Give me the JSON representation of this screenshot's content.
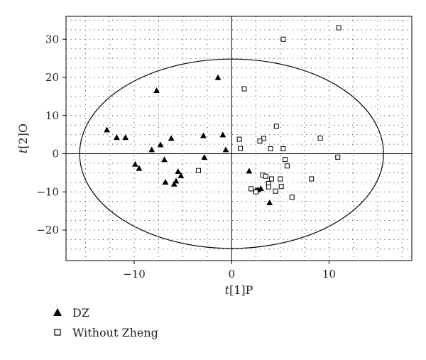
{
  "chart_data": {
    "type": "scatter",
    "xlabel_var": "t",
    "xlabel_rest": "[1]P",
    "ylabel_var": "t",
    "ylabel_rest": "[2]O",
    "xlim": [
      -17,
      18.5
    ],
    "ylim": [
      -28,
      36
    ],
    "xticks": [
      -10,
      0,
      10
    ],
    "yticks": [
      -20,
      -10,
      0,
      10,
      20,
      30
    ],
    "xtick_labels": [
      "−10",
      "0",
      "10"
    ],
    "ytick_labels": [
      "−20",
      "−10",
      "0",
      "10",
      "20",
      "30"
    ],
    "grid": true,
    "ellipse": {
      "cx": 0,
      "cy": 0,
      "rx": 15.6,
      "ry": 24.8
    },
    "legend_position": "bottom-left",
    "series": [
      {
        "name": "DZ",
        "marker": "triangle",
        "points": [
          [
            -12.8,
            6.2
          ],
          [
            -11.8,
            4.2
          ],
          [
            -10.9,
            4.2
          ],
          [
            -9.9,
            -2.8
          ],
          [
            -9.5,
            -3.9
          ],
          [
            -8.2,
            1.0
          ],
          [
            -7.7,
            16.5
          ],
          [
            -7.3,
            2.3
          ],
          [
            -6.9,
            -1.6
          ],
          [
            -6.8,
            -7.5
          ],
          [
            -6.2,
            4.0
          ],
          [
            -5.9,
            -8.0
          ],
          [
            -5.7,
            -7.2
          ],
          [
            -5.5,
            -4.7
          ],
          [
            -5.2,
            -5.8
          ],
          [
            -2.9,
            4.7
          ],
          [
            -2.8,
            -1.0
          ],
          [
            -1.4,
            19.9
          ],
          [
            -0.9,
            4.9
          ],
          [
            -0.6,
            1.0
          ],
          [
            1.8,
            -4.6
          ],
          [
            2.5,
            -9.6
          ],
          [
            2.7,
            -9.5
          ],
          [
            3.0,
            -9.2
          ],
          [
            3.9,
            -12.9
          ]
        ]
      },
      {
        "name": "Without Zheng",
        "marker": "square",
        "points": [
          [
            11.0,
            33.0
          ],
          [
            5.3,
            30.0
          ],
          [
            1.3,
            17.0
          ],
          [
            4.6,
            7.2
          ],
          [
            9.1,
            4.1
          ],
          [
            0.8,
            3.8
          ],
          [
            3.3,
            4.0
          ],
          [
            2.9,
            3.3
          ],
          [
            0.9,
            1.4
          ],
          [
            4.0,
            1.3
          ],
          [
            5.3,
            1.3
          ],
          [
            10.9,
            -0.9
          ],
          [
            5.5,
            -1.5
          ],
          [
            5.7,
            -3.2
          ],
          [
            -3.4,
            -4.4
          ],
          [
            3.2,
            -5.6
          ],
          [
            3.5,
            -5.9
          ],
          [
            4.1,
            -6.6
          ],
          [
            5.0,
            -6.6
          ],
          [
            8.2,
            -6.6
          ],
          [
            3.8,
            -7.8
          ],
          [
            3.8,
            -8.7
          ],
          [
            5.1,
            -8.6
          ],
          [
            2.0,
            -9.2
          ],
          [
            2.5,
            -10.0
          ],
          [
            4.5,
            -9.8
          ],
          [
            6.2,
            -11.4
          ]
        ]
      }
    ]
  }
}
